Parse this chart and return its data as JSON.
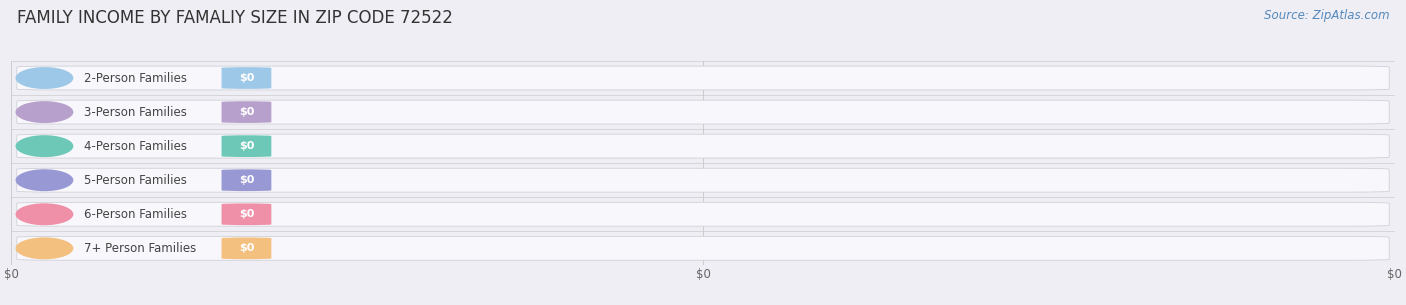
{
  "title": "FAMILY INCOME BY FAMALIY SIZE IN ZIP CODE 72522",
  "source": "Source: ZipAtlas.com",
  "categories": [
    "2-Person Families",
    "3-Person Families",
    "4-Person Families",
    "5-Person Families",
    "6-Person Families",
    "7+ Person Families"
  ],
  "values": [
    0,
    0,
    0,
    0,
    0,
    0
  ],
  "bar_colors": [
    "#9ec8e8",
    "#b8a0cc",
    "#6dc8b8",
    "#9898d4",
    "#f090a8",
    "#f4c080"
  ],
  "value_labels": [
    "$0",
    "$0",
    "$0",
    "$0",
    "$0",
    "$0"
  ],
  "xtick_labels": [
    "$0",
    "$0",
    "$0"
  ],
  "xtick_positions": [
    0.0,
    0.5,
    1.0
  ],
  "background_color": "#eeeef4",
  "title_fontsize": 12,
  "source_fontsize": 8.5,
  "label_fontsize": 8.5,
  "value_fontsize": 8
}
